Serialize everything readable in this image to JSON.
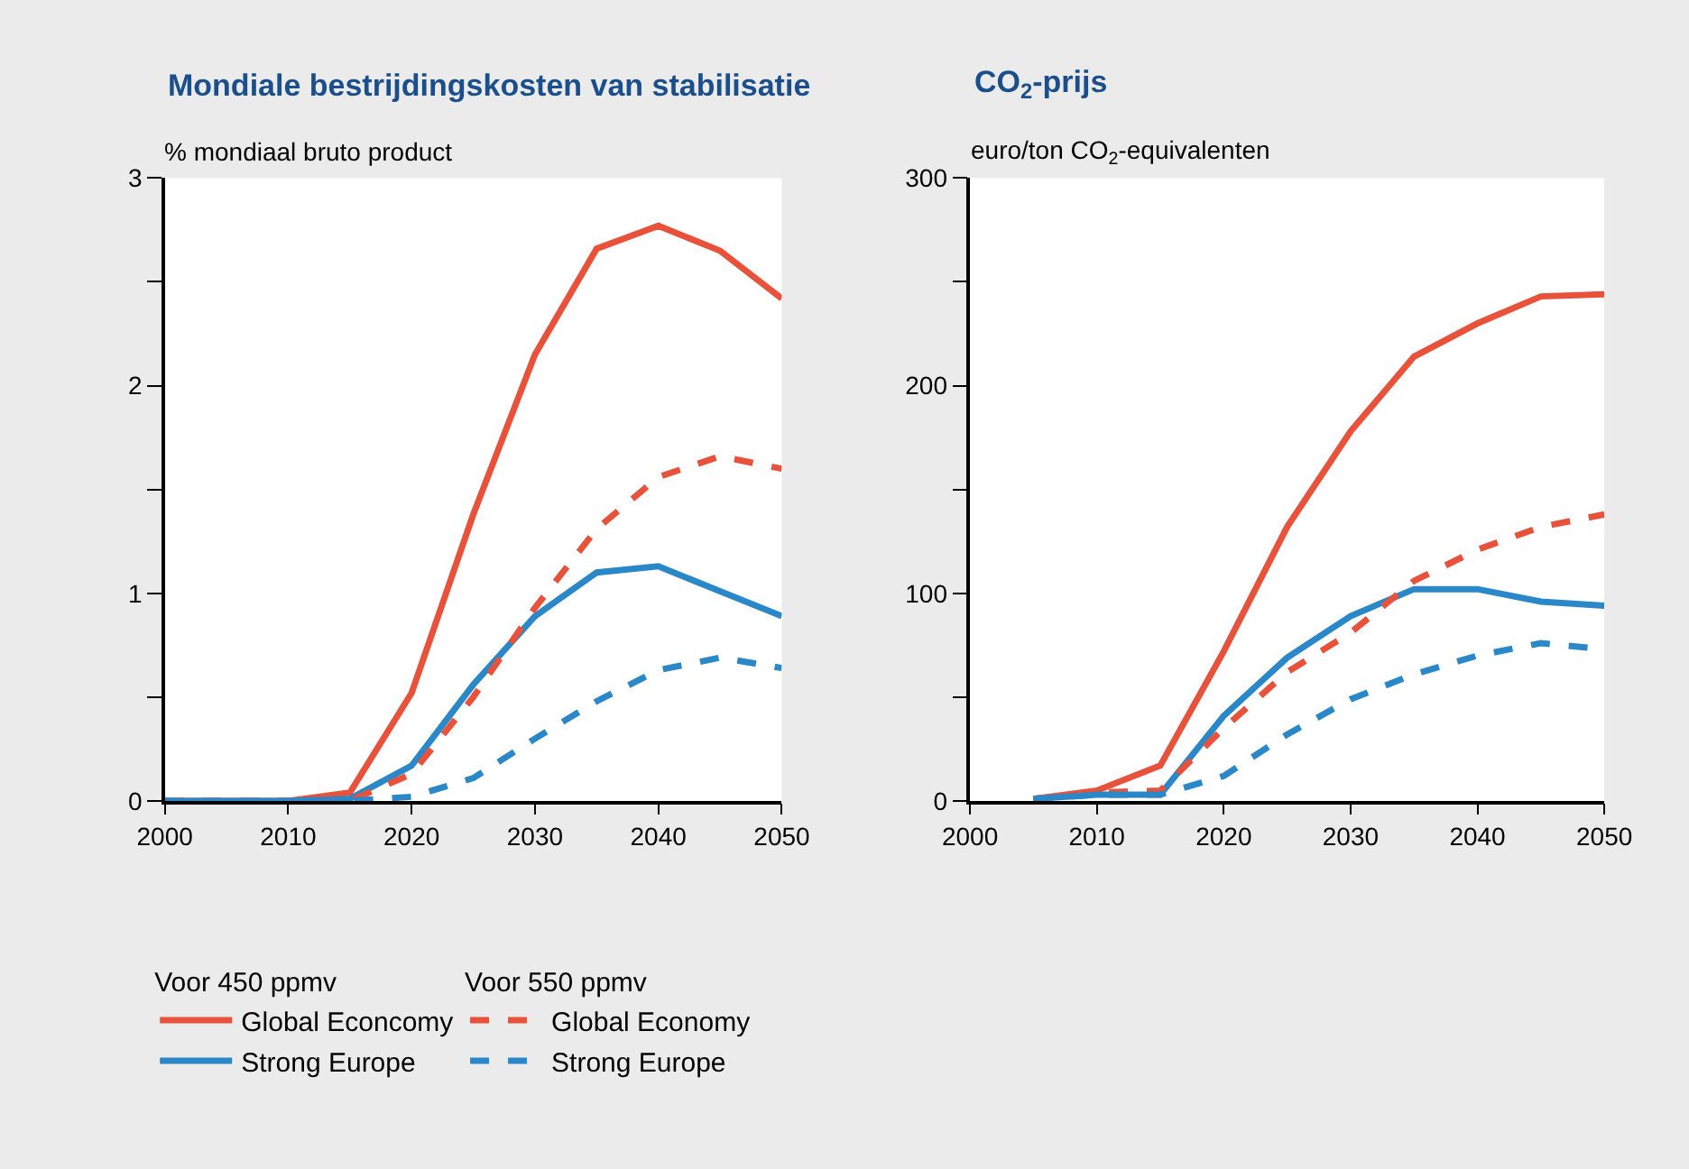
{
  "chart_data": [
    {
      "type": "line",
      "title": "Mondiale bestrijdingskosten van stabilisatie",
      "ylabel": "% mondiaal bruto product",
      "x": [
        2000,
        2005,
        2010,
        2015,
        2020,
        2025,
        2030,
        2035,
        2040,
        2045,
        2050
      ],
      "series": [
        {
          "name": "Global Econcomy",
          "color": "#e8513a",
          "line_style": "solid",
          "values": [
            0,
            0,
            0,
            0.04,
            0.52,
            1.38,
            2.15,
            2.66,
            2.77,
            2.65,
            2.42
          ]
        },
        {
          "name": "Strong Europe",
          "color": "#2a87c8",
          "line_style": "solid",
          "values": [
            0,
            0,
            0,
            0.01,
            0.17,
            0.56,
            0.89,
            1.1,
            1.13,
            1.01,
            0.89
          ]
        },
        {
          "name": "Global Economy",
          "color": "#e8513a",
          "line_style": "dashed",
          "values": [
            0,
            0,
            0,
            0,
            0.13,
            0.5,
            0.93,
            1.31,
            1.56,
            1.66,
            1.6
          ]
        },
        {
          "name": "Strong Europe",
          "color": "#2a87c8",
          "line_style": "dashed",
          "values": [
            0,
            0,
            0,
            0,
            0.02,
            0.11,
            0.3,
            0.48,
            0.63,
            0.69,
            0.64
          ]
        }
      ],
      "legend_title": [
        "Voor 450 ppmv",
        "Voor 550 ppmv"
      ],
      "legend": "bottom",
      "grid": false,
      "xlim": [
        2000,
        2050
      ],
      "xticks": [
        2000,
        2010,
        2020,
        2030,
        2040,
        2050
      ],
      "ylim": [
        0,
        3
      ],
      "yticks": [
        0,
        {
          "value": 0.5,
          "label": null
        },
        1,
        {
          "value": 1.5,
          "label": null
        },
        2,
        {
          "value": 2.5,
          "label": null
        },
        3
      ]
    },
    {
      "type": "line",
      "title": "CO$_{2}$-prijs",
      "ylabel": "euro/ton CO$_{2}$-equivalenten",
      "x": [
        2005,
        2010,
        2015,
        2020,
        2025,
        2030,
        2035,
        2040,
        2045,
        2050
      ],
      "series": [
        {
          "color": "#e8513a",
          "line_style": "solid",
          "values": [
            1,
            5,
            17,
            72,
            132,
            178,
            214,
            230,
            243,
            244
          ]
        },
        {
          "color": "#2a87c8",
          "line_style": "solid",
          "values": [
            1,
            3,
            3,
            41,
            69,
            89,
            102,
            102,
            96,
            94
          ]
        },
        {
          "color": "#e8513a",
          "line_style": "dashed",
          "values": [
            1,
            4,
            5,
            35,
            62,
            81,
            106,
            121,
            132,
            138
          ]
        },
        {
          "color": "#2a87c8",
          "line_style": "dashed",
          "values": [
            1,
            3,
            3,
            12,
            32,
            49,
            61,
            70,
            76,
            73
          ]
        }
      ],
      "grid": false,
      "xlim": [
        2000,
        2050
      ],
      "xticks": [
        2000,
        2010,
        2020,
        2030,
        2040,
        2050
      ],
      "ylim": [
        0,
        300
      ],
      "yticks": [
        0,
        {
          "value": 50,
          "label": null
        },
        100,
        {
          "value": 150,
          "label": null
        },
        200,
        {
          "value": 250,
          "label": null
        },
        300
      ]
    }
  ]
}
